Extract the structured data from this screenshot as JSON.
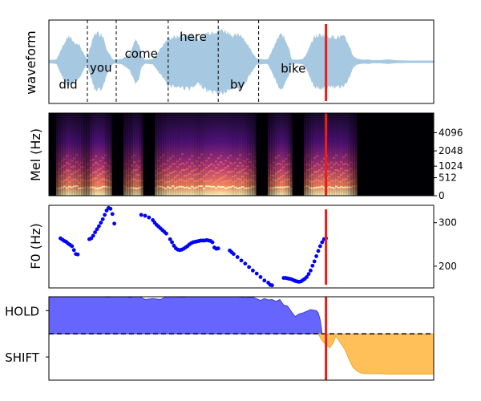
{
  "chart_data": [
    {
      "type": "area",
      "panel": "waveform",
      "ylabel": "waveform",
      "xlim": [
        0,
        1
      ],
      "color": "#a6c8e0",
      "envelope": {
        "x": [
          0.0,
          0.02,
          0.03,
          0.05,
          0.07,
          0.08,
          0.09,
          0.1,
          0.105,
          0.12,
          0.14,
          0.15,
          0.165,
          0.17,
          0.19,
          0.21,
          0.225,
          0.235,
          0.24,
          0.25,
          0.27,
          0.29,
          0.31,
          0.34,
          0.37,
          0.39,
          0.41,
          0.43,
          0.45,
          0.47,
          0.48,
          0.5,
          0.52,
          0.54,
          0.56,
          0.57,
          0.58,
          0.6,
          0.61,
          0.625,
          0.63,
          0.645,
          0.66,
          0.67,
          0.69,
          0.71,
          0.73,
          0.75,
          0.76,
          0.77,
          0.78,
          0.79,
          0.8,
          0.81,
          0.82,
          0.83,
          0.84,
          0.86,
          0.88,
          0.9,
          0.93,
          1.0
        ],
        "amp": [
          0.02,
          0.04,
          0.3,
          0.7,
          0.5,
          0.45,
          0.2,
          0.05,
          0.3,
          0.8,
          0.75,
          0.35,
          0.05,
          0.03,
          0.05,
          0.2,
          0.6,
          0.45,
          0.15,
          0.03,
          0.05,
          0.35,
          0.65,
          0.7,
          0.75,
          0.6,
          0.8,
          0.85,
          0.88,
          0.8,
          0.7,
          0.75,
          0.4,
          0.06,
          0.04,
          0.05,
          0.3,
          0.75,
          0.7,
          0.35,
          0.04,
          0.03,
          0.05,
          0.2,
          0.7,
          0.75,
          0.7,
          0.68,
          0.7,
          0.65,
          0.45,
          0.15,
          0.06,
          0.04,
          0.03,
          0.04,
          0.02,
          0.02,
          0.04,
          0.02,
          0.01,
          0.01
        ]
      },
      "boundaries": [
        0.1,
        0.175,
        0.31,
        0.44,
        0.545
      ],
      "words": [
        {
          "text": "did",
          "x": 0.05,
          "y": 0.18
        },
        {
          "text": "you",
          "x": 0.135,
          "y": 0.38
        },
        {
          "text": "come",
          "x": 0.24,
          "y": 0.55
        },
        {
          "text": "here",
          "x": 0.375,
          "y": 0.75
        },
        {
          "text": "by",
          "x": 0.49,
          "y": 0.18
        },
        {
          "text": "bike",
          "x": 0.635,
          "y": 0.37
        }
      ],
      "marker_x": 0.72
    },
    {
      "type": "heatmap",
      "panel": "mel",
      "ylabel": "Mel (Hz)",
      "ylim": [
        0,
        8000
      ],
      "yticks": [
        {
          "value": 0,
          "label": "0"
        },
        {
          "value": 512,
          "label": "512"
        },
        {
          "value": 1024,
          "label": "1024"
        },
        {
          "value": 2048,
          "label": "2048"
        },
        {
          "value": 4096,
          "label": "4096"
        }
      ],
      "colormap": "magma",
      "marker_x": 0.72
    },
    {
      "type": "scatter",
      "panel": "f0",
      "ylabel": "F0 (Hz)",
      "ylim": [
        150,
        340
      ],
      "yticks": [
        {
          "value": 200,
          "label": "200"
        },
        {
          "value": 300,
          "label": "300"
        }
      ],
      "color": "#0000ff",
      "points": [
        [
          0.03,
          264
        ],
        [
          0.035,
          261
        ],
        [
          0.04,
          258
        ],
        [
          0.045,
          256
        ],
        [
          0.05,
          252
        ],
        [
          0.055,
          249
        ],
        [
          0.06,
          246
        ],
        [
          0.065,
          237
        ],
        [
          0.07,
          228
        ],
        [
          0.075,
          227
        ],
        [
          0.105,
          262
        ],
        [
          0.11,
          264
        ],
        [
          0.115,
          270
        ],
        [
          0.12,
          278
        ],
        [
          0.125,
          285
        ],
        [
          0.13,
          292
        ],
        [
          0.135,
          300
        ],
        [
          0.14,
          308
        ],
        [
          0.145,
          318
        ],
        [
          0.15,
          328
        ],
        [
          0.155,
          334
        ],
        [
          0.16,
          332
        ],
        [
          0.165,
          320
        ],
        [
          0.17,
          298
        ],
        [
          0.24,
          318
        ],
        [
          0.25,
          316
        ],
        [
          0.26,
          312
        ],
        [
          0.27,
          306
        ],
        [
          0.275,
          300
        ],
        [
          0.28,
          295
        ],
        [
          0.285,
          291
        ],
        [
          0.29,
          287
        ],
        [
          0.295,
          283
        ],
        [
          0.3,
          279
        ],
        [
          0.305,
          275
        ],
        [
          0.315,
          262
        ],
        [
          0.32,
          255
        ],
        [
          0.325,
          247
        ],
        [
          0.33,
          241
        ],
        [
          0.335,
          238
        ],
        [
          0.34,
          237
        ],
        [
          0.345,
          238
        ],
        [
          0.35,
          240
        ],
        [
          0.355,
          243
        ],
        [
          0.36,
          246
        ],
        [
          0.365,
          250
        ],
        [
          0.37,
          253
        ],
        [
          0.375,
          255
        ],
        [
          0.38,
          256
        ],
        [
          0.385,
          257
        ],
        [
          0.39,
          258
        ],
        [
          0.395,
          259
        ],
        [
          0.4,
          259
        ],
        [
          0.405,
          259
        ],
        [
          0.41,
          260
        ],
        [
          0.415,
          259
        ],
        [
          0.42,
          258
        ],
        [
          0.425,
          255
        ],
        [
          0.43,
          243
        ],
        [
          0.435,
          240
        ],
        [
          0.44,
          241
        ],
        [
          0.47,
          236
        ],
        [
          0.475,
          232
        ],
        [
          0.48,
          228
        ],
        [
          0.49,
          221
        ],
        [
          0.5,
          213
        ],
        [
          0.51,
          206
        ],
        [
          0.52,
          198
        ],
        [
          0.53,
          190
        ],
        [
          0.54,
          183
        ],
        [
          0.55,
          175
        ],
        [
          0.56,
          167
        ],
        [
          0.57,
          162
        ],
        [
          0.575,
          157
        ],
        [
          0.58,
          156
        ],
        [
          0.61,
          173
        ],
        [
          0.615,
          173
        ],
        [
          0.62,
          172
        ],
        [
          0.625,
          171
        ],
        [
          0.63,
          170
        ],
        [
          0.635,
          168
        ],
        [
          0.64,
          166
        ],
        [
          0.645,
          165
        ],
        [
          0.65,
          164
        ],
        [
          0.655,
          165
        ],
        [
          0.66,
          168
        ],
        [
          0.665,
          171
        ],
        [
          0.67,
          175
        ],
        [
          0.675,
          182
        ],
        [
          0.68,
          190
        ],
        [
          0.685,
          201
        ],
        [
          0.69,
          211
        ],
        [
          0.695,
          223
        ],
        [
          0.7,
          235
        ],
        [
          0.705,
          246
        ],
        [
          0.71,
          255
        ],
        [
          0.715,
          262
        ],
        [
          0.72,
          264
        ]
      ],
      "marker_x": 0.72
    },
    {
      "type": "area",
      "panel": "turn",
      "ylim": [
        -1.0,
        0.8
      ],
      "yticks": [
        {
          "value": 0.5,
          "label": "HOLD"
        },
        {
          "value": -0.5,
          "label": "SHIFT"
        }
      ],
      "threshold": 0,
      "hold_color": "#6666ff",
      "shift_color": "#ffc05a",
      "hold": {
        "x": [
          0.0,
          0.01,
          0.03,
          0.05,
          0.07,
          0.09,
          0.11,
          0.13,
          0.15,
          0.17,
          0.19,
          0.21,
          0.23,
          0.25,
          0.27,
          0.29,
          0.31,
          0.33,
          0.35,
          0.37,
          0.39,
          0.41,
          0.43,
          0.45,
          0.47,
          0.49,
          0.51,
          0.53,
          0.55,
          0.56,
          0.57,
          0.58,
          0.59,
          0.6,
          0.61,
          0.62,
          0.63,
          0.64,
          0.65,
          0.66,
          0.68,
          0.695,
          0.7,
          0.705,
          0.71
        ],
        "y": [
          0.78,
          0.82,
          0.84,
          0.82,
          0.8,
          0.82,
          0.81,
          0.83,
          0.79,
          0.8,
          0.85,
          0.78,
          0.83,
          0.74,
          0.76,
          0.74,
          0.82,
          0.8,
          0.79,
          0.81,
          0.8,
          0.81,
          0.82,
          0.81,
          0.8,
          0.8,
          0.78,
          0.79,
          0.72,
          0.76,
          0.73,
          0.74,
          0.7,
          0.74,
          0.62,
          0.6,
          0.48,
          0.37,
          0.43,
          0.45,
          0.52,
          0.5,
          0.45,
          0.3,
          0.0
        ]
      },
      "shift": {
        "x": [
          0.7,
          0.71,
          0.73,
          0.74,
          0.745,
          0.75,
          0.77,
          0.78,
          0.79,
          0.8,
          0.81,
          0.82,
          0.83,
          0.84,
          0.86,
          0.88,
          0.9,
          0.93,
          0.96,
          1.0
        ],
        "y": [
          0.0,
          -0.15,
          -0.3,
          -0.18,
          -0.05,
          -0.1,
          -0.35,
          -0.55,
          -0.72,
          -0.8,
          -0.84,
          -0.86,
          -0.86,
          -0.86,
          -0.86,
          -0.87,
          -0.87,
          -0.87,
          -0.87,
          -0.87
        ]
      },
      "marker_x": 0.72
    }
  ]
}
